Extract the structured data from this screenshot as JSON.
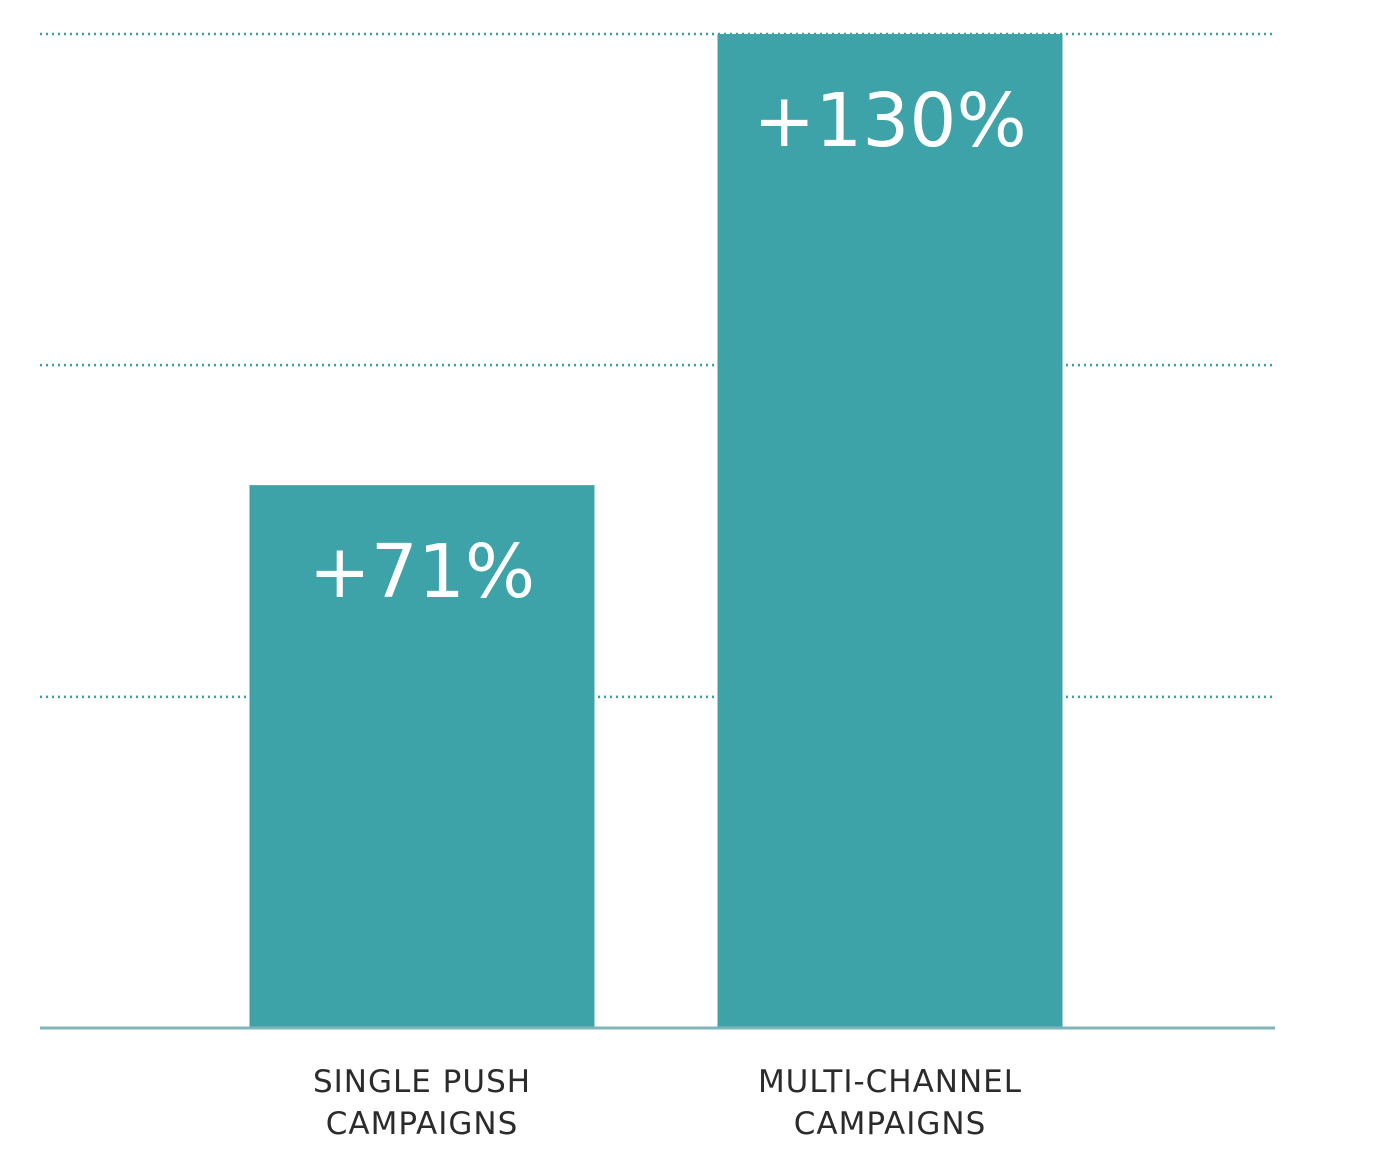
{
  "chart_data": {
    "type": "bar",
    "categories": [
      [
        "SINGLE PUSH",
        "CAMPAIGNS"
      ],
      [
        "MULTI-CHANNEL",
        "CAMPAIGNS"
      ]
    ],
    "values": [
      71,
      130
    ],
    "data_labels": [
      "+71%",
      "+130%"
    ],
    "title": "",
    "xlabel": "",
    "ylabel": "",
    "ylim": [
      0,
      130
    ],
    "gridlines": [
      43.3,
      86.7,
      130
    ],
    "grid": true,
    "grid_style": "dotted",
    "legend": "none",
    "colors": {
      "bar": "#3da3a8",
      "grid": "#3a9ea3",
      "baseline": "#7fb5b8",
      "value_text": "#ffffff",
      "label_text": "#2b2b2b"
    }
  }
}
